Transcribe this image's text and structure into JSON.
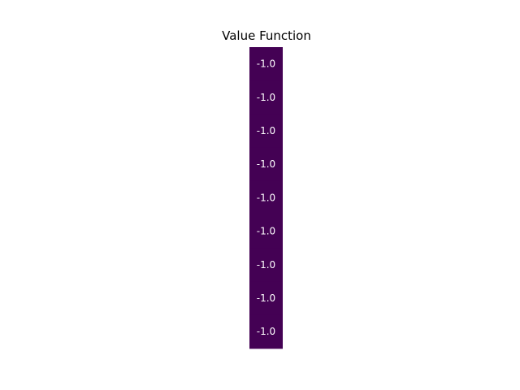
{
  "chart_data": {
    "type": "heatmap",
    "title": "Value Function",
    "rows": 9,
    "cols": 1,
    "values": [
      [
        -1.0
      ],
      [
        -1.0
      ],
      [
        -1.0
      ],
      [
        -1.0
      ],
      [
        -1.0
      ],
      [
        -1.0
      ],
      [
        -1.0
      ],
      [
        -1.0
      ],
      [
        -1.0
      ]
    ],
    "cell_labels": [
      [
        "-1.0"
      ],
      [
        "-1.0"
      ],
      [
        "-1.0"
      ],
      [
        "-1.0"
      ],
      [
        "-1.0"
      ],
      [
        "-1.0"
      ],
      [
        "-1.0"
      ],
      [
        "-1.0"
      ],
      [
        "-1.0"
      ]
    ],
    "colormap": "viridis",
    "cell_color": "#440154",
    "label_color": "#ffffff",
    "axes_visible": false,
    "colorbar": false
  }
}
